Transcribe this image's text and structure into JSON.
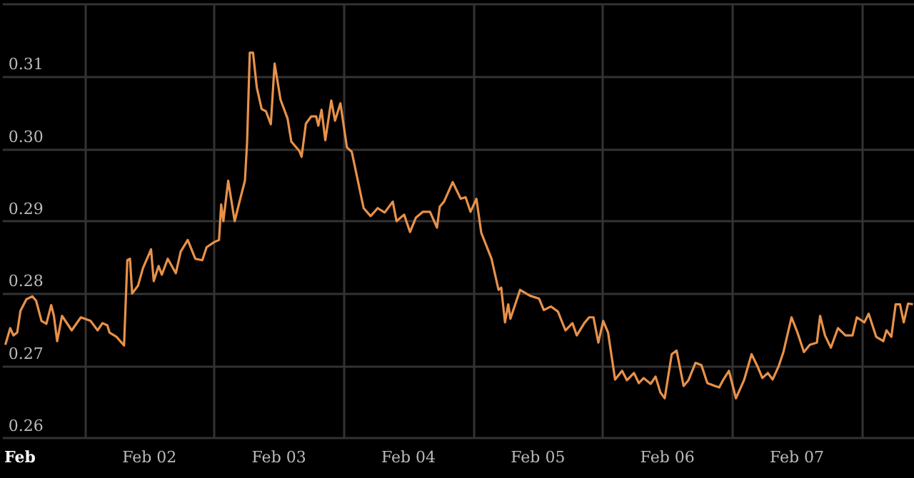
{
  "chart_data": {
    "type": "line",
    "x": [
      "--01-31T21:18",
      "--01-31T22:12",
      "--01-31T22:48",
      "--01-31T23:30",
      "--02-01T00:06",
      "--02-01T01:12",
      "--02-01T02:18",
      "--02-01T03:00",
      "--02-01T04:00",
      "--02-01T04:54",
      "--02-01T05:48",
      "--02-01T06:18",
      "--02-01T06:54",
      "--02-01T07:48",
      "--02-01T09:36",
      "--02-01T11:18",
      "--02-01T13:06",
      "--02-01T14:24",
      "--02-01T15:18",
      "--02-01T16:12",
      "--02-01T16:36",
      "--02-01T17:54",
      "--02-01T19:18",
      "--02-01T19:54",
      "--02-01T20:24",
      "--02-01T20:48",
      "--02-01T21:54",
      "--02-01T22:48",
      "--02-02T00:18",
      "--02-02T00:48",
      "--02-02T01:42",
      "--02-02T02:18",
      "--02-02T03:24",
      "--02-02T04:54",
      "--02-02T05:48",
      "--02-02T07:06",
      "--02-02T08:30",
      "--02-02T09:48",
      "--02-02T10:36",
      "--02-02T12:00",
      "--02-02T12:54",
      "--02-02T13:18",
      "--02-02T13:42",
      "--02-02T14:36",
      "--02-02T15:48",
      "--02-02T16:48",
      "--02-02T17:42",
      "--02-02T18:06",
      "--02-02T18:36",
      "--02-02T19:12",
      "--02-02T19:54",
      "--02-02T20:48",
      "--02-02T21:36",
      "--02-02T22:30",
      "--02-02T23:12",
      "--02-03T00:18",
      "--02-03T01:36",
      "--02-03T02:18",
      "--02-03T03:48",
      "--02-03T04:12",
      "--02-03T05:00",
      "--02-03T06:00",
      "--02-03T06:54",
      "--02-03T07:18",
      "--02-03T07:54",
      "--02-03T08:36",
      "--02-03T09:42",
      "--02-03T10:24",
      "--02-03T11:24",
      "--02-03T12:36",
      "--02-03T13:30",
      "--02-03T15:42",
      "--02-03T17:00",
      "--02-03T18:18",
      "--02-03T19:36",
      "--02-03T21:06",
      "--02-03T21:48",
      "--02-03T23:12",
      "--02-04T00:18",
      "--02-04T01:24",
      "--02-04T02:42",
      "--02-04T04:00",
      "--02-04T05:18",
      "--02-04T05:48",
      "--02-04T06:36",
      "--02-04T08:12",
      "--02-04T09:42",
      "--02-04T10:36",
      "--02-04T11:30",
      "--02-04T12:36",
      "--02-04T13:30",
      "--02-04T15:24",
      "--02-04T16:42",
      "--02-04T17:12",
      "--02-04T17:54",
      "--02-04T18:30",
      "--02-04T18:54",
      "--02-04T20:42",
      "--02-04T22:30",
      "--02-04T23:18",
      "--02-05T00:12",
      "--02-05T01:06",
      "--02-05T02:24",
      "--02-05T03:42",
      "--02-05T05:06",
      "--02-05T06:24",
      "--02-05T07:12",
      "--02-05T08:36",
      "--02-05T09:30",
      "--02-05T10:18",
      "--02-05T11:12",
      "--02-05T12:06",
      "--02-05T13:00",
      "--02-05T14:18",
      "--02-05T15:36",
      "--02-05T16:30",
      "--02-05T17:48",
      "--02-05T18:42",
      "--02-05T19:36",
      "--02-05T20:54",
      "--02-05T21:48",
      "--02-05T22:42",
      "--02-05T23:30",
      "--02-06T00:48",
      "--02-06T01:42",
      "--02-06T03:00",
      "--02-06T03:54",
      "--02-06T05:12",
      "--02-06T06:18",
      "--02-06T07:24",
      "--02-06T08:48",
      "--02-06T09:36",
      "--02-06T10:18",
      "--02-06T11:24",
      "--02-06T12:42",
      "--02-06T14:12",
      "--02-06T15:36",
      "--02-06T16:42",
      "--02-06T17:36",
      "--02-06T18:36",
      "--02-06T19:30",
      "--02-06T20:36",
      "--02-06T21:30",
      "--02-06T23:00",
      "--02-07T00:06",
      "--02-07T01:18",
      "--02-07T02:24",
      "--02-07T03:42",
      "--02-07T04:18",
      "--02-07T05:12",
      "--02-07T06:18",
      "--02-07T07:36",
      "--02-07T09:00",
      "--02-07T10:18",
      "--02-07T11:06",
      "--02-07T12:30",
      "--02-07T13:18",
      "--02-07T14:42",
      "--02-07T16:00",
      "--02-07T16:36",
      "--02-07T17:30",
      "--02-07T18:18",
      "--02-07T19:06",
      "--02-07T19:48",
      "--02-07T20:36",
      "--02-07T21:30"
    ],
    "series": [
      {
        "color": "#e8914a",
        "values": [
          0.2729,
          0.2752,
          0.2742,
          0.2746,
          0.2776,
          0.2792,
          0.2796,
          0.279,
          0.2762,
          0.2758,
          0.2784,
          0.2769,
          0.2734,
          0.2769,
          0.2749,
          0.2767,
          0.2762,
          0.2749,
          0.2759,
          0.2756,
          0.2746,
          0.274,
          0.2728,
          0.2846,
          0.2848,
          0.28,
          0.2811,
          0.2835,
          0.2861,
          0.2817,
          0.2838,
          0.2826,
          0.2848,
          0.2828,
          0.2858,
          0.2874,
          0.2848,
          0.2846,
          0.2864,
          0.2871,
          0.2874,
          0.2923,
          0.29,
          0.2956,
          0.29,
          0.293,
          0.2956,
          0.3009,
          0.3133,
          0.3133,
          0.3085,
          0.3055,
          0.3052,
          0.3034,
          0.3118,
          0.3068,
          0.3042,
          0.301,
          0.2997,
          0.2989,
          0.3035,
          0.3045,
          0.3045,
          0.3032,
          0.3054,
          0.3012,
          0.3067,
          0.3039,
          0.3063,
          0.3002,
          0.2996,
          0.2918,
          0.2907,
          0.2918,
          0.2912,
          0.2927,
          0.29,
          0.2909,
          0.2885,
          0.2905,
          0.2913,
          0.2913,
          0.2891,
          0.292,
          0.2927,
          0.2954,
          0.2931,
          0.2933,
          0.2913,
          0.2931,
          0.2884,
          0.2848,
          0.2805,
          0.2808,
          0.276,
          0.2785,
          0.2765,
          0.2805,
          0.2797,
          0.2795,
          0.2793,
          0.2777,
          0.2782,
          0.2775,
          0.2749,
          0.2759,
          0.2742,
          0.2759,
          0.2767,
          0.2767,
          0.2732,
          0.2762,
          0.2746,
          0.2681,
          0.2693,
          0.268,
          0.269,
          0.2676,
          0.2683,
          0.2675,
          0.2685,
          0.2663,
          0.2655,
          0.2716,
          0.2721,
          0.2672,
          0.268,
          0.2704,
          0.2701,
          0.2676,
          0.2672,
          0.267,
          0.268,
          0.2693,
          0.2655,
          0.268,
          0.2716,
          0.2699,
          0.2683,
          0.269,
          0.2681,
          0.2699,
          0.2719,
          0.2767,
          0.2746,
          0.2719,
          0.2729,
          0.2732,
          0.2769,
          0.2742,
          0.2725,
          0.2752,
          0.2742,
          0.2742,
          0.2767,
          0.276,
          0.2772,
          0.274,
          0.2734,
          0.2749,
          0.274,
          0.2785,
          0.2785,
          0.276,
          0.2786,
          0.2785
        ]
      }
    ],
    "xlim": [
      "--01-31T20:48",
      "--02-07T21:42"
    ],
    "xticks": [
      {
        "value": "--02-01",
        "label": "Feb"
      },
      {
        "value": "--02-01T12:00",
        "label": null
      },
      {
        "value": "--02-02",
        "label": "Feb 02"
      },
      {
        "value": "--02-02T12:00",
        "label": null
      },
      {
        "value": "--02-03",
        "label": "Feb 03"
      },
      {
        "value": "--02-03T12:00",
        "label": null
      },
      {
        "value": "--02-04",
        "label": "Feb 04"
      },
      {
        "value": "--02-04T12:00",
        "label": null
      },
      {
        "value": "--02-05",
        "label": "Feb 05"
      },
      {
        "value": "--02-05T12:00",
        "label": null
      },
      {
        "value": "--02-06",
        "label": "Feb 06"
      },
      {
        "value": "--02-06T12:00",
        "label": null
      },
      {
        "value": "--02-07",
        "label": "Feb 07"
      },
      {
        "value": "--02-07T12:00",
        "label": null
      }
    ],
    "ylim": [
      0.26,
      0.32
    ],
    "yticks": [
      {
        "value": 0.26,
        "label": "0.26"
      },
      {
        "value": 0.27,
        "label": "0.27"
      },
      {
        "value": 0.28,
        "label": "0.28"
      },
      {
        "value": 0.29,
        "label": "0.29"
      },
      {
        "value": 0.3,
        "label": "0.30"
      },
      {
        "value": 0.31,
        "label": "0.31"
      },
      {
        "value": 0.32,
        "label": null
      }
    ],
    "grid": true,
    "marker": "none",
    "line_style": "solid"
  }
}
